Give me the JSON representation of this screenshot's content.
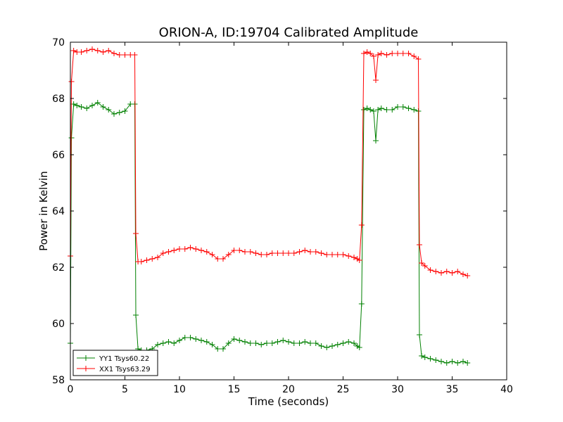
{
  "chart_data": {
    "type": "line",
    "title": "ORION-A, ID:19704 Calibrated Amplitude",
    "xlabel": "Time (seconds)",
    "ylabel": "Power in Kelvin",
    "xlim": [
      0,
      40
    ],
    "ylim": [
      58,
      70
    ],
    "xticks": [
      0,
      5,
      10,
      15,
      20,
      25,
      30,
      35,
      40
    ],
    "yticks": [
      58,
      60,
      62,
      64,
      66,
      68,
      70
    ],
    "grid": false,
    "legend_position": "lower-left",
    "marker": "+",
    "series": [
      {
        "name": "YY1 Tsys60.22",
        "color": "#008000",
        "points": [
          [
            0.0,
            59.3
          ],
          [
            0.1,
            66.6
          ],
          [
            0.3,
            67.8
          ],
          [
            0.6,
            67.75
          ],
          [
            1.0,
            67.7
          ],
          [
            1.5,
            67.65
          ],
          [
            2.0,
            67.75
          ],
          [
            2.5,
            67.85
          ],
          [
            3.0,
            67.7
          ],
          [
            3.5,
            67.6
          ],
          [
            4.0,
            67.45
          ],
          [
            4.5,
            67.5
          ],
          [
            5.0,
            67.55
          ],
          [
            5.5,
            67.8
          ],
          [
            5.9,
            67.8
          ],
          [
            6.0,
            60.3
          ],
          [
            6.2,
            59.1
          ],
          [
            6.5,
            59.05
          ],
          [
            7.0,
            59.05
          ],
          [
            7.5,
            59.1
          ],
          [
            8.0,
            59.25
          ],
          [
            8.5,
            59.3
          ],
          [
            9.0,
            59.35
          ],
          [
            9.5,
            59.3
          ],
          [
            10.0,
            59.4
          ],
          [
            10.5,
            59.5
          ],
          [
            11.0,
            59.5
          ],
          [
            11.5,
            59.45
          ],
          [
            12.0,
            59.4
          ],
          [
            12.5,
            59.35
          ],
          [
            13.0,
            59.25
          ],
          [
            13.5,
            59.1
          ],
          [
            14.0,
            59.1
          ],
          [
            14.5,
            59.3
          ],
          [
            15.0,
            59.45
          ],
          [
            15.5,
            59.4
          ],
          [
            16.0,
            59.35
          ],
          [
            16.5,
            59.3
          ],
          [
            17.0,
            59.3
          ],
          [
            17.5,
            59.25
          ],
          [
            18.0,
            59.3
          ],
          [
            18.5,
            59.3
          ],
          [
            19.0,
            59.35
          ],
          [
            19.5,
            59.4
          ],
          [
            20.0,
            59.35
          ],
          [
            20.5,
            59.3
          ],
          [
            21.0,
            59.3
          ],
          [
            21.5,
            59.35
          ],
          [
            22.0,
            59.3
          ],
          [
            22.5,
            59.3
          ],
          [
            23.0,
            59.2
          ],
          [
            23.5,
            59.15
          ],
          [
            24.0,
            59.2
          ],
          [
            24.5,
            59.25
          ],
          [
            25.0,
            59.3
          ],
          [
            25.5,
            59.35
          ],
          [
            26.0,
            59.3
          ],
          [
            26.3,
            59.2
          ],
          [
            26.5,
            59.15
          ],
          [
            26.7,
            60.7
          ],
          [
            26.9,
            67.6
          ],
          [
            27.2,
            67.65
          ],
          [
            27.5,
            67.6
          ],
          [
            27.8,
            67.55
          ],
          [
            28.0,
            66.5
          ],
          [
            28.2,
            67.6
          ],
          [
            28.5,
            67.65
          ],
          [
            29.0,
            67.6
          ],
          [
            29.5,
            67.6
          ],
          [
            30.0,
            67.7
          ],
          [
            30.5,
            67.7
          ],
          [
            31.0,
            67.65
          ],
          [
            31.5,
            67.6
          ],
          [
            31.9,
            67.55
          ],
          [
            32.0,
            59.6
          ],
          [
            32.2,
            58.85
          ],
          [
            32.5,
            58.8
          ],
          [
            33.0,
            58.75
          ],
          [
            33.5,
            58.7
          ],
          [
            34.0,
            58.65
          ],
          [
            34.5,
            58.6
          ],
          [
            35.0,
            58.65
          ],
          [
            35.5,
            58.6
          ],
          [
            36.0,
            58.65
          ],
          [
            36.4,
            58.6
          ]
        ]
      },
      {
        "name": "XX1 Tsys63.29",
        "color": "#ff0000",
        "points": [
          [
            0.0,
            62.4
          ],
          [
            0.1,
            68.6
          ],
          [
            0.3,
            69.7
          ],
          [
            0.6,
            69.65
          ],
          [
            1.0,
            69.65
          ],
          [
            1.5,
            69.7
          ],
          [
            2.0,
            69.75
          ],
          [
            2.5,
            69.7
          ],
          [
            3.0,
            69.65
          ],
          [
            3.5,
            69.7
          ],
          [
            4.0,
            69.6
          ],
          [
            4.5,
            69.55
          ],
          [
            5.0,
            69.55
          ],
          [
            5.5,
            69.55
          ],
          [
            5.9,
            69.55
          ],
          [
            6.0,
            63.2
          ],
          [
            6.2,
            62.2
          ],
          [
            6.5,
            62.2
          ],
          [
            7.0,
            62.25
          ],
          [
            7.5,
            62.3
          ],
          [
            8.0,
            62.35
          ],
          [
            8.5,
            62.5
          ],
          [
            9.0,
            62.55
          ],
          [
            9.5,
            62.6
          ],
          [
            10.0,
            62.65
          ],
          [
            10.5,
            62.65
          ],
          [
            11.0,
            62.7
          ],
          [
            11.5,
            62.65
          ],
          [
            12.0,
            62.6
          ],
          [
            12.5,
            62.55
          ],
          [
            13.0,
            62.45
          ],
          [
            13.5,
            62.3
          ],
          [
            14.0,
            62.3
          ],
          [
            14.5,
            62.45
          ],
          [
            15.0,
            62.6
          ],
          [
            15.5,
            62.6
          ],
          [
            16.0,
            62.55
          ],
          [
            16.5,
            62.55
          ],
          [
            17.0,
            62.5
          ],
          [
            17.5,
            62.45
          ],
          [
            18.0,
            62.45
          ],
          [
            18.5,
            62.5
          ],
          [
            19.0,
            62.5
          ],
          [
            19.5,
            62.5
          ],
          [
            20.0,
            62.5
          ],
          [
            20.5,
            62.5
          ],
          [
            21.0,
            62.55
          ],
          [
            21.5,
            62.6
          ],
          [
            22.0,
            62.55
          ],
          [
            22.5,
            62.55
          ],
          [
            23.0,
            62.5
          ],
          [
            23.5,
            62.45
          ],
          [
            24.0,
            62.45
          ],
          [
            24.5,
            62.45
          ],
          [
            25.0,
            62.45
          ],
          [
            25.5,
            62.4
          ],
          [
            26.0,
            62.35
          ],
          [
            26.3,
            62.3
          ],
          [
            26.5,
            62.25
          ],
          [
            26.7,
            63.5
          ],
          [
            26.9,
            69.6
          ],
          [
            27.2,
            69.65
          ],
          [
            27.5,
            69.6
          ],
          [
            27.8,
            69.5
          ],
          [
            28.0,
            68.65
          ],
          [
            28.2,
            69.55
          ],
          [
            28.5,
            69.6
          ],
          [
            29.0,
            69.55
          ],
          [
            29.5,
            69.6
          ],
          [
            30.0,
            69.6
          ],
          [
            30.5,
            69.6
          ],
          [
            31.0,
            69.6
          ],
          [
            31.5,
            69.5
          ],
          [
            31.9,
            69.4
          ],
          [
            32.0,
            62.8
          ],
          [
            32.2,
            62.15
          ],
          [
            32.5,
            62.05
          ],
          [
            33.0,
            61.9
          ],
          [
            33.5,
            61.85
          ],
          [
            34.0,
            61.8
          ],
          [
            34.5,
            61.85
          ],
          [
            35.0,
            61.8
          ],
          [
            35.5,
            61.85
          ],
          [
            36.0,
            61.75
          ],
          [
            36.4,
            61.7
          ]
        ]
      }
    ]
  }
}
